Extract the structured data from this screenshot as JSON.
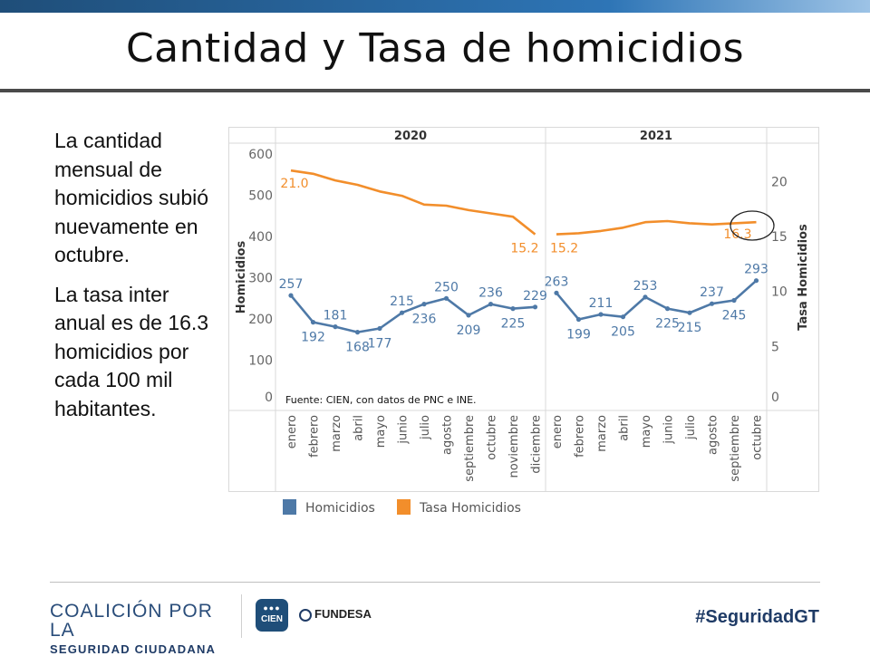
{
  "slide": {
    "title": "Cantidad y Tasa de homicidios",
    "paragraph1": "La cantidad mensual de homicidios subió nuevamente en octubre.",
    "paragraph2": "La tasa inter anual es de 16.3 homicidios por cada 100 mil habitantes."
  },
  "footer": {
    "coalicion_line1": "COALICIÓN POR LA",
    "coalicion_line2": "SEGURIDAD CIUDADANA",
    "cien_label": "CIEN",
    "fundesa_label": "FUNDESA",
    "hashtag": "#SeguridadGT"
  },
  "colors": {
    "homicidios": "#4e79a7",
    "tasa": "#f28e2b"
  },
  "chart_data": {
    "type": "line",
    "source_note": "Fuente: CIEN, con datos de PNC e INE.",
    "ylabel_left": "Homicidios",
    "ylabel_right": "Tasa Homicidios",
    "ylim_left": [
      0,
      600
    ],
    "ylim_right": [
      0,
      22.5
    ],
    "yticks_left": [
      "0",
      "100",
      "200",
      "300",
      "400",
      "500",
      "600"
    ],
    "yticks_right": [
      "0",
      "5",
      "10",
      "15",
      "20"
    ],
    "panels": [
      {
        "year": "2020",
        "months": [
          "enero",
          "febrero",
          "marzo",
          "abril",
          "mayo",
          "junio",
          "julio",
          "agosto",
          "septiembre",
          "octubre",
          "noviembre",
          "diciembre"
        ],
        "homicidios": [
          257,
          192,
          181,
          168,
          177,
          215,
          236,
          250,
          209,
          236,
          225,
          229
        ],
        "tasa": [
          21.0,
          20.7,
          20.1,
          19.7,
          19.1,
          18.7,
          17.9,
          17.8,
          17.4,
          17.1,
          16.8,
          15.2
        ]
      },
      {
        "year": "2021",
        "months": [
          "enero",
          "febrero",
          "marzo",
          "abril",
          "mayo",
          "junio",
          "julio",
          "agosto",
          "septiembre",
          "octubre"
        ],
        "homicidios": [
          263,
          199,
          211,
          205,
          253,
          225,
          215,
          237,
          245,
          293
        ],
        "tasa": [
          15.2,
          15.3,
          15.5,
          15.8,
          16.3,
          16.4,
          16.2,
          16.1,
          16.2,
          16.3
        ]
      }
    ],
    "homicidios_labels": [
      [
        "257",
        "192",
        "181",
        "168",
        "177",
        "215",
        "236",
        "250",
        "209",
        "236",
        "225",
        "229"
      ],
      [
        "263",
        "199",
        "211",
        "205",
        "253",
        "225",
        "215",
        "237",
        "245",
        "293"
      ]
    ],
    "tasa_labels": {
      "first": "21.0",
      "end_2020": "15.2",
      "start_2021": "15.2",
      "last": "16.3"
    },
    "legend": [
      "Homicidios",
      "Tasa Homicidios"
    ]
  }
}
